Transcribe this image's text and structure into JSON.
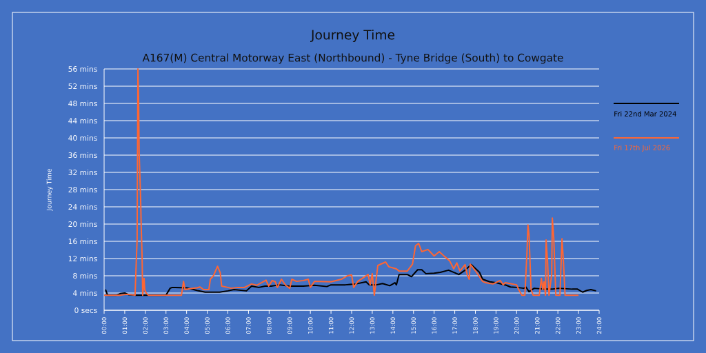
{
  "chart_data": {
    "type": "line",
    "title": "Journey Time",
    "subtitle": "A167(M) Central Motorway East (Northbound) - Tyne Bridge (South) to Cowgate",
    "ylabel": "Journey Time",
    "xlim": [
      0,
      24
    ],
    "ylim": [
      0,
      56
    ],
    "xticks": [
      {
        "value": 0,
        "label": "00:00"
      },
      {
        "value": 1,
        "label": "01:00"
      },
      {
        "value": 2,
        "label": "02:00"
      },
      {
        "value": 3,
        "label": "03:00"
      },
      {
        "value": 4,
        "label": "04:00"
      },
      {
        "value": 5,
        "label": "05:00"
      },
      {
        "value": 6,
        "label": "06:00"
      },
      {
        "value": 7,
        "label": "07:00"
      },
      {
        "value": 8,
        "label": "08:00"
      },
      {
        "value": 9,
        "label": "09:00"
      },
      {
        "value": 10,
        "label": "10:00"
      },
      {
        "value": 11,
        "label": "11:00"
      },
      {
        "value": 12,
        "label": "12:00"
      },
      {
        "value": 13,
        "label": "13:00"
      },
      {
        "value": 14,
        "label": "14:00"
      },
      {
        "value": 15,
        "label": "15:00"
      },
      {
        "value": 16,
        "label": "16:00"
      },
      {
        "value": 17,
        "label": "17:00"
      },
      {
        "value": 18,
        "label": "18:00"
      },
      {
        "value": 19,
        "label": "19:00"
      },
      {
        "value": 20,
        "label": "20:00"
      },
      {
        "value": 21,
        "label": "21:00"
      },
      {
        "value": 22,
        "label": "22:00"
      },
      {
        "value": 23,
        "label": "23:00"
      },
      {
        "value": 24,
        "label": "24:00"
      }
    ],
    "yticks": [
      {
        "value": 0,
        "label": "0 secs"
      },
      {
        "value": 4,
        "label": "4 mins"
      },
      {
        "value": 8,
        "label": "8 mins"
      },
      {
        "value": 12,
        "label": "12 mins"
      },
      {
        "value": 16,
        "label": "16 mins"
      },
      {
        "value": 20,
        "label": "20 mins"
      },
      {
        "value": 24,
        "label": "24 mins"
      },
      {
        "value": 28,
        "label": "28 mins"
      },
      {
        "value": 32,
        "label": "32 mins"
      },
      {
        "value": 36,
        "label": "36 mins"
      },
      {
        "value": 40,
        "label": "40 mins"
      },
      {
        "value": 44,
        "label": "44 mins"
      },
      {
        "value": 48,
        "label": "48 mins"
      },
      {
        "value": 52,
        "label": "52 mins"
      },
      {
        "value": 56,
        "label": "56 mins"
      }
    ],
    "grid": "y",
    "legend": "right",
    "marker": "none",
    "line_style": "solid",
    "series": [
      {
        "name": "Fri 22nd Mar 2024",
        "color": "#000000",
        "x": [
          0.07,
          0.17,
          0.6,
          0.8,
          1.0,
          1.2,
          1.5,
          3.0,
          3.2,
          3.3,
          4.0,
          4.5,
          4.9,
          5.0,
          5.6,
          6.0,
          6.3,
          6.9,
          7.15,
          7.5,
          7.8,
          8.1,
          8.5,
          9.0,
          9.66,
          10.2,
          10.8,
          11.0,
          11.7,
          12.2,
          12.7,
          12.85,
          13.2,
          13.5,
          13.85,
          14.0,
          14.1,
          14.17,
          14.3,
          14.7,
          14.9,
          15.2,
          15.4,
          15.6,
          16.0,
          16.3,
          16.7,
          17.2,
          17.5,
          17.8,
          18.2,
          18.35,
          18.7,
          19.0,
          19.5,
          19.7,
          20.0,
          20.35,
          20.45,
          20.6,
          20.85,
          21.35,
          21.7,
          22.05,
          22.7,
          22.95,
          23.2,
          23.4,
          23.6,
          23.85
        ],
        "values": [
          4.8,
          3.5,
          3.5,
          3.9,
          4.0,
          3.6,
          3.5,
          3.5,
          5.1,
          5.3,
          5.2,
          4.6,
          4.2,
          4.2,
          4.2,
          4.5,
          4.8,
          4.5,
          5.6,
          5.3,
          5.6,
          5.6,
          5.9,
          5.6,
          5.6,
          5.8,
          5.5,
          5.9,
          5.9,
          6.1,
          6.6,
          5.9,
          5.9,
          6.2,
          5.7,
          6.1,
          6.4,
          5.9,
          8.3,
          8.3,
          7.8,
          9.4,
          9.4,
          8.5,
          8.6,
          8.8,
          9.3,
          8.3,
          9.3,
          10.6,
          8.8,
          7.2,
          6.6,
          6.4,
          5.8,
          5.4,
          5.3,
          5.1,
          5.4,
          4.3,
          5.1,
          4.9,
          4.9,
          5.1,
          4.9,
          4.9,
          4.2,
          4.6,
          4.8,
          4.5
        ]
      },
      {
        "name": "Fri 17th Jul 2026",
        "color": "#ff6633",
        "x": [
          0.0,
          0.8,
          1.1,
          1.5,
          1.6,
          1.64,
          1.67,
          1.7,
          1.77,
          1.8,
          1.84,
          1.87,
          1.94,
          1.97,
          2.04,
          2.14,
          3.75,
          3.85,
          3.92,
          4.15,
          4.5,
          4.65,
          4.82,
          5.08,
          5.15,
          5.3,
          5.5,
          5.63,
          5.7,
          6.0,
          6.15,
          6.5,
          6.8,
          7.15,
          7.4,
          7.85,
          7.98,
          8.15,
          8.3,
          8.4,
          8.6,
          8.8,
          9.0,
          9.1,
          9.33,
          9.66,
          9.9,
          10.0,
          10.2,
          11.0,
          11.5,
          11.8,
          12.0,
          12.1,
          12.3,
          12.8,
          12.9,
          13.0,
          13.1,
          13.27,
          13.65,
          13.8,
          14.17,
          14.3,
          14.7,
          14.95,
          15.1,
          15.25,
          15.4,
          15.7,
          16.0,
          16.25,
          16.5,
          16.75,
          16.95,
          17.1,
          17.25,
          17.5,
          17.6,
          17.7,
          17.75,
          18.0,
          18.35,
          18.5,
          18.85,
          19.2,
          19.35,
          19.45,
          20.0,
          20.1,
          20.25,
          20.4,
          20.5,
          20.55,
          20.6,
          20.7,
          20.8,
          21.1,
          21.2,
          21.27,
          21.33,
          21.4,
          21.43,
          21.5,
          21.57,
          21.7,
          21.73,
          21.8,
          21.9,
          22.1,
          22.2,
          22.27,
          22.35,
          23.0
        ],
        "values": [
          3.5,
          3.5,
          3.7,
          3.5,
          16.5,
          56,
          49.6,
          36.3,
          26,
          19.2,
          12.8,
          3.5,
          7.4,
          4.8,
          4.0,
          3.5,
          3.5,
          6.7,
          4.8,
          5.0,
          5.2,
          5.4,
          4.8,
          4.8,
          7.2,
          8.0,
          10.2,
          8.7,
          5.6,
          5.3,
          5.1,
          5.3,
          5.3,
          6.1,
          5.8,
          7.0,
          5.6,
          6.9,
          6.6,
          5.3,
          7.2,
          5.8,
          5.1,
          7.2,
          6.7,
          6.9,
          7.2,
          5.3,
          6.7,
          6.6,
          7.2,
          8.0,
          8.2,
          5.3,
          6.7,
          8.3,
          5.9,
          8.5,
          3.5,
          10.4,
          11.2,
          10.1,
          9.6,
          9.1,
          9.1,
          10.7,
          15.0,
          15.5,
          13.6,
          14.1,
          12.6,
          13.6,
          12.5,
          11.5,
          9.6,
          11.0,
          9.1,
          10.6,
          8.3,
          7.2,
          10.7,
          9.2,
          6.7,
          6.4,
          6.1,
          6.9,
          5.9,
          6.4,
          5.9,
          4.8,
          3.5,
          3.5,
          13.3,
          19.8,
          17.5,
          4.8,
          3.5,
          3.5,
          7.4,
          4.8,
          6.6,
          3.5,
          16.3,
          11.2,
          3.5,
          8.3,
          21.4,
          16.8,
          3.5,
          3.5,
          16.6,
          11.2,
          3.5,
          3.5
        ]
      }
    ]
  }
}
